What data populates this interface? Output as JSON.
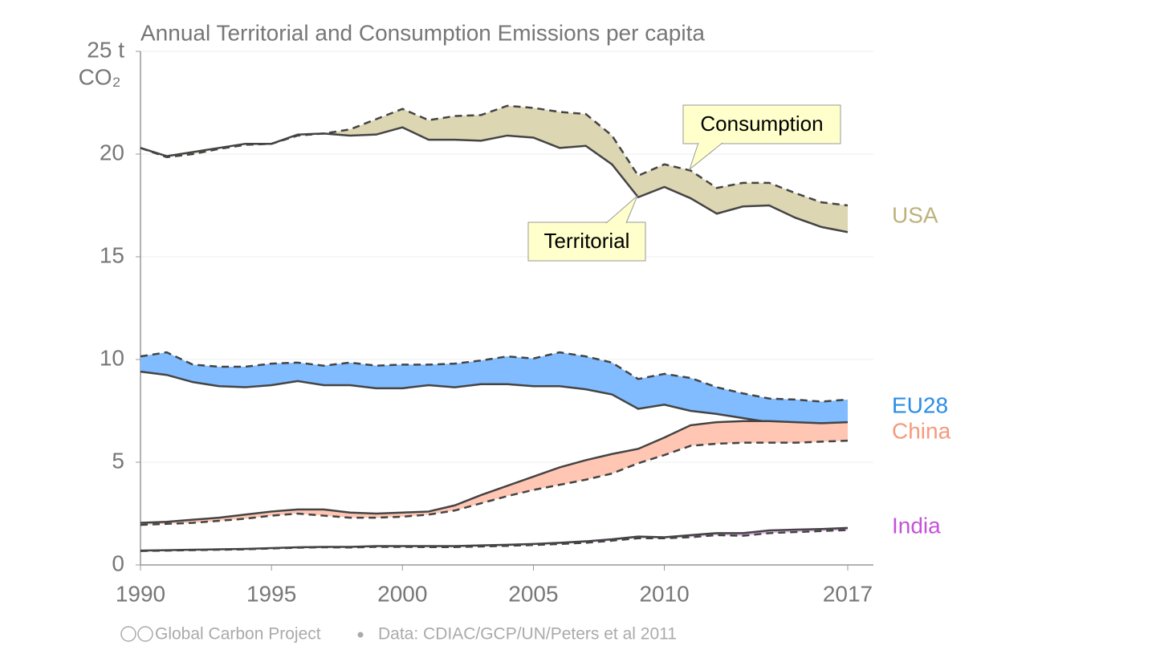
{
  "chart_data": {
    "type": "band",
    "title": "Annual Territorial and Consumption Emissions per capita",
    "y_label": "CO₂",
    "x": [
      1990,
      1991,
      1992,
      1993,
      1994,
      1995,
      1996,
      1997,
      1998,
      1999,
      2000,
      2001,
      2002,
      2003,
      2004,
      2005,
      2006,
      2007,
      2008,
      2009,
      2010,
      2011,
      2012,
      2013,
      2014,
      2015,
      2016,
      2017
    ],
    "xlim": [
      1990,
      2017
    ],
    "xticks": [
      1990,
      1995,
      2000,
      2005,
      2010,
      2017
    ],
    "ylim": [
      0,
      25
    ],
    "yticks": [
      0,
      5,
      10,
      15,
      20,
      {
        "value": 25,
        "label": "25 t"
      }
    ],
    "grid": true,
    "series": [
      {
        "name": "USA",
        "color": "#bdb27c",
        "fill": "#dcd6b3",
        "territorial": [
          20.3,
          19.9,
          20.1,
          20.3,
          20.5,
          20.5,
          20.95,
          21.0,
          20.9,
          20.95,
          21.3,
          20.7,
          20.7,
          20.65,
          20.9,
          20.8,
          20.3,
          20.4,
          19.5,
          17.9,
          18.4,
          17.85,
          17.1,
          17.45,
          17.5,
          16.9,
          16.45,
          16.2
        ],
        "consumption": [
          20.3,
          19.85,
          20.0,
          20.25,
          20.45,
          20.5,
          20.9,
          21.0,
          21.2,
          21.7,
          22.2,
          21.65,
          21.85,
          21.9,
          22.35,
          22.25,
          22.05,
          21.95,
          20.9,
          18.95,
          19.5,
          19.2,
          18.35,
          18.6,
          18.6,
          18.1,
          17.65,
          17.5
        ]
      },
      {
        "name": "EU28",
        "color": "#2b8ce6",
        "fill": "#80bcff",
        "territorial": [
          9.41,
          9.25,
          8.9,
          8.7,
          8.65,
          8.75,
          8.95,
          8.75,
          8.75,
          8.6,
          8.6,
          8.75,
          8.65,
          8.8,
          8.8,
          8.7,
          8.7,
          8.55,
          8.3,
          7.6,
          7.8,
          7.5,
          7.35,
          7.15,
          6.95,
          6.9,
          6.85,
          6.9
        ],
        "consumption": [
          10.15,
          10.35,
          9.75,
          9.65,
          9.65,
          9.8,
          9.85,
          9.7,
          9.85,
          9.7,
          9.75,
          9.75,
          9.8,
          9.95,
          10.15,
          10.05,
          10.35,
          10.15,
          9.85,
          9.05,
          9.3,
          9.1,
          8.65,
          8.35,
          8.1,
          8.05,
          7.95,
          8.05
        ]
      },
      {
        "name": "China",
        "color": "#f49a7e",
        "fill": "#ffc6b3",
        "territorial": [
          2.05,
          2.1,
          2.2,
          2.3,
          2.45,
          2.6,
          2.7,
          2.7,
          2.55,
          2.5,
          2.55,
          2.6,
          2.9,
          3.4,
          3.85,
          4.3,
          4.75,
          5.1,
          5.4,
          5.65,
          6.2,
          6.8,
          6.95,
          7.0,
          7.0,
          6.95,
          6.9,
          6.95
        ],
        "consumption": [
          1.95,
          2.0,
          2.05,
          2.15,
          2.25,
          2.4,
          2.5,
          2.4,
          2.3,
          2.3,
          2.35,
          2.45,
          2.65,
          3.0,
          3.35,
          3.65,
          3.9,
          4.15,
          4.45,
          4.95,
          5.35,
          5.8,
          5.9,
          5.95,
          5.95,
          5.95,
          6.0,
          6.05
        ]
      },
      {
        "name": "India",
        "color": "#c353d8",
        "fill": "#e6b0f0",
        "territorial": [
          0.7,
          0.72,
          0.74,
          0.76,
          0.78,
          0.82,
          0.86,
          0.88,
          0.88,
          0.92,
          0.92,
          0.92,
          0.92,
          0.95,
          0.98,
          1.02,
          1.08,
          1.15,
          1.25,
          1.38,
          1.35,
          1.45,
          1.55,
          1.55,
          1.68,
          1.72,
          1.75,
          1.8
        ],
        "consumption": [
          0.68,
          0.7,
          0.72,
          0.74,
          0.76,
          0.8,
          0.84,
          0.86,
          0.85,
          0.88,
          0.88,
          0.87,
          0.87,
          0.9,
          0.93,
          0.97,
          1.02,
          1.08,
          1.18,
          1.3,
          1.3,
          1.35,
          1.45,
          1.42,
          1.55,
          1.6,
          1.65,
          1.7
        ]
      }
    ],
    "annotations": [
      "Consumption",
      "Territorial"
    ],
    "source": "Global Carbon Project",
    "data_source": "Data: CDIAC/GCP/UN/Peters et al 2011"
  }
}
